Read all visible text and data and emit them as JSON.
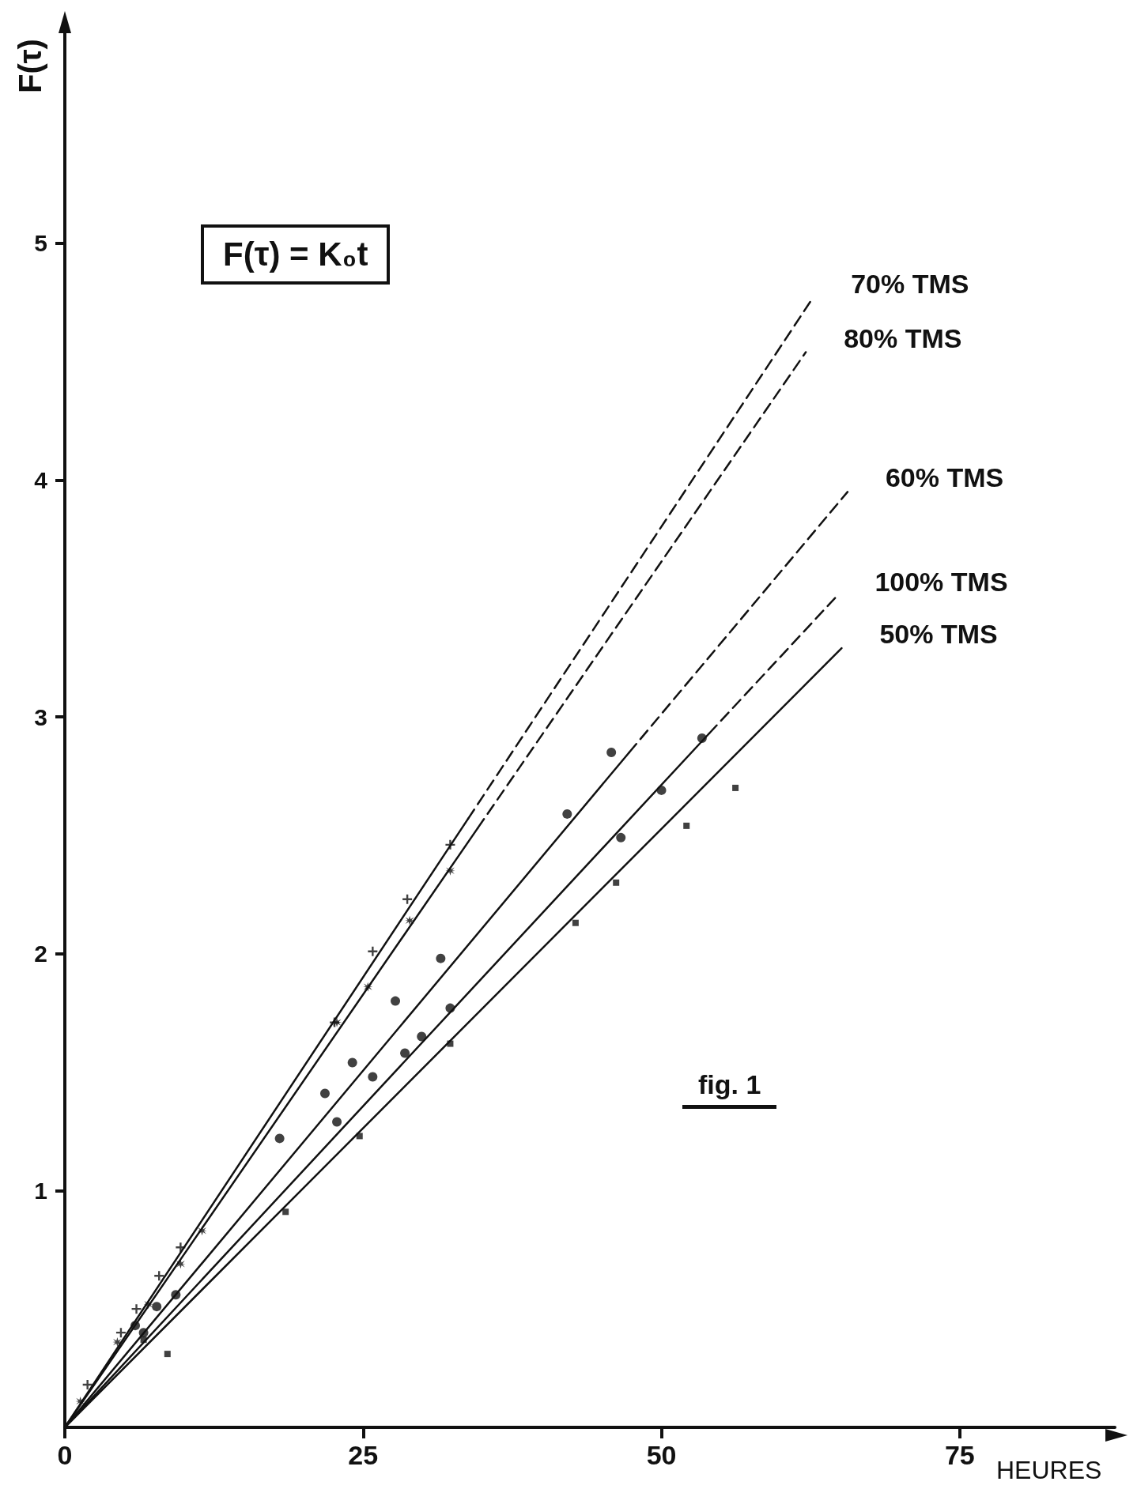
{
  "chart_data": {
    "type": "scatter",
    "ylabel": "F(τ)",
    "xlabel": "HEURES",
    "annotations": [
      "F(τ) = K₀t",
      "fig. 1"
    ],
    "xlim": [
      0,
      88
    ],
    "ylim": [
      0,
      5.9
    ],
    "xticks": [
      0,
      25,
      50,
      75
    ],
    "yticks": [
      1,
      2,
      3,
      4,
      5
    ],
    "series": [
      {
        "type": "line",
        "x": [
          0,
          33.8
        ],
        "values": [
          0,
          2.57
        ],
        "color": "#111111",
        "marker": "none",
        "line_style": "solid"
      },
      {
        "type": "line",
        "name": "70% TMS",
        "x": [
          33.8,
          62.7
        ],
        "values": [
          2.57,
          4.77
        ],
        "color": "#111111",
        "marker": "none",
        "line_style": "dashed"
      },
      {
        "type": "line",
        "x": [
          0,
          34.6
        ],
        "values": [
          0,
          2.53
        ],
        "color": "#111111",
        "marker": "none",
        "line_style": "solid"
      },
      {
        "type": "line",
        "name": "80% TMS",
        "x": [
          34.6,
          62.1
        ],
        "values": [
          2.53,
          4.54
        ],
        "color": "#111111",
        "marker": "none",
        "line_style": "dashed"
      },
      {
        "type": "line",
        "x": [
          0,
          47.3
        ],
        "values": [
          0,
          2.85
        ],
        "color": "#111111",
        "marker": "none",
        "line_style": "solid"
      },
      {
        "type": "line",
        "name": "60% TMS",
        "x": [
          47.3,
          65.6
        ],
        "values": [
          2.85,
          3.95
        ],
        "color": "#111111",
        "marker": "none",
        "line_style": "dashed"
      },
      {
        "type": "line",
        "x": [
          0,
          54
        ],
        "values": [
          0,
          2.93
        ],
        "color": "#111111",
        "marker": "none",
        "line_style": "solid"
      },
      {
        "type": "line",
        "name": "100% TMS",
        "x": [
          54,
          64.7
        ],
        "values": [
          2.93,
          3.51
        ],
        "color": "#111111",
        "marker": "none",
        "line_style": "dashed"
      },
      {
        "type": "line",
        "name": "50% TMS",
        "x": [
          0,
          65.1
        ],
        "values": [
          0,
          3.29
        ],
        "color": "#111111",
        "marker": "none",
        "line_style": "solid"
      },
      {
        "marker": "cross",
        "color": "#111111",
        "x": [
          1.9,
          4.7,
          6.0,
          7.9,
          9.7,
          22.6,
          25.8,
          28.7,
          32.3
        ],
        "values": [
          0.18,
          0.4,
          0.5,
          0.64,
          0.76,
          1.71,
          2.01,
          2.23,
          2.46
        ]
      },
      {
        "marker": "star",
        "color": "#111111",
        "x": [
          1.3,
          4.4,
          7.0,
          9.7,
          11.5,
          22.8,
          25.4,
          28.9,
          32.3
        ],
        "values": [
          0.11,
          0.36,
          0.52,
          0.69,
          0.83,
          1.71,
          1.86,
          2.14,
          2.35
        ]
      },
      {
        "marker": "circle",
        "color": "#111111",
        "x": [
          5.9,
          7.7,
          18.0,
          21.8,
          24.1,
          27.7,
          31.5,
          42.1,
          45.8
        ],
        "values": [
          0.43,
          0.51,
          1.22,
          1.41,
          1.54,
          1.8,
          1.98,
          2.59,
          2.85
        ]
      },
      {
        "marker": "circle",
        "color": "#111111",
        "x": [
          6.6,
          9.3,
          22.8,
          25.8,
          28.5,
          29.9,
          32.3,
          46.6,
          50.0,
          53.4
        ],
        "values": [
          0.4,
          0.56,
          1.29,
          1.48,
          1.58,
          1.65,
          1.77,
          2.49,
          2.69,
          2.91
        ]
      },
      {
        "marker": "square",
        "color": "#111111",
        "x": [
          6.6,
          8.6,
          18.5,
          24.7,
          32.3,
          42.8,
          46.2,
          52.1,
          56.2
        ],
        "values": [
          0.37,
          0.31,
          0.91,
          1.23,
          1.62,
          2.13,
          2.3,
          2.54,
          2.7
        ]
      }
    ]
  }
}
